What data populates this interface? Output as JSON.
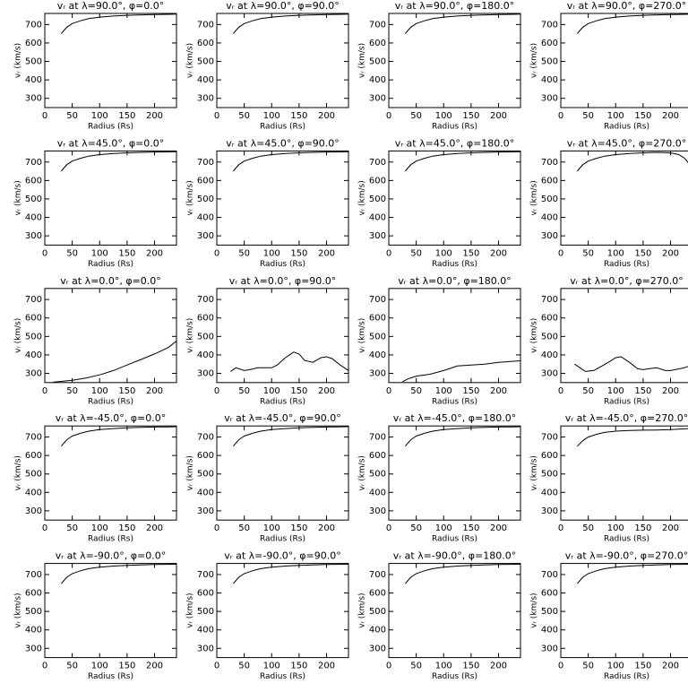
{
  "chart_data": [
    {
      "type": "line",
      "title": "vᵣ at λ=90.0°, φ=0.0°",
      "x_label": "Radius (Rs)",
      "y_label": "vᵣ (km/s)",
      "x": [
        30,
        40,
        50,
        65,
        80,
        100,
        125,
        150,
        175,
        200,
        225,
        240
      ],
      "values": [
        650,
        685,
        705,
        720,
        732,
        740,
        746,
        750,
        752,
        754,
        755,
        756
      ],
      "color": "#000000",
      "xlim": [
        0,
        240
      ],
      "ylim": [
        250,
        760
      ],
      "xticks": [
        0,
        50,
        100,
        150,
        200
      ],
      "yticks": [
        300,
        400,
        500,
        600,
        700
      ]
    },
    {
      "type": "line",
      "title": "vᵣ at λ=90.0°, φ=90.0°",
      "x_label": "Radius (Rs)",
      "y_label": "vᵣ (km/s)",
      "x": [
        30,
        40,
        50,
        65,
        80,
        100,
        125,
        150,
        175,
        200,
        225,
        240
      ],
      "values": [
        650,
        685,
        705,
        720,
        732,
        740,
        746,
        750,
        752,
        754,
        755,
        756
      ],
      "color": "#000000",
      "xlim": [
        0,
        240
      ],
      "ylim": [
        250,
        760
      ],
      "xticks": [
        0,
        50,
        100,
        150,
        200
      ],
      "yticks": [
        300,
        400,
        500,
        600,
        700
      ]
    },
    {
      "type": "line",
      "title": "vᵣ at λ=90.0°, φ=180.0°",
      "x_label": "Radius (Rs)",
      "y_label": "vᵣ (km/s)",
      "x": [
        30,
        40,
        50,
        65,
        80,
        100,
        125,
        150,
        175,
        200,
        225,
        240
      ],
      "values": [
        650,
        685,
        705,
        720,
        732,
        740,
        746,
        750,
        752,
        754,
        755,
        756
      ],
      "color": "#000000",
      "xlim": [
        0,
        240
      ],
      "ylim": [
        250,
        760
      ],
      "xticks": [
        0,
        50,
        100,
        150,
        200
      ],
      "yticks": [
        300,
        400,
        500,
        600,
        700
      ]
    },
    {
      "type": "line",
      "title": "vᵣ at λ=90.0°, φ=270.0°",
      "x_label": "Radius (Rs)",
      "y_label": "vᵣ (km/s)",
      "x": [
        30,
        40,
        50,
        65,
        80,
        100,
        125,
        150,
        175,
        200,
        225,
        240
      ],
      "values": [
        650,
        685,
        705,
        720,
        732,
        740,
        746,
        750,
        752,
        754,
        755,
        756
      ],
      "color": "#000000",
      "xlim": [
        0,
        240
      ],
      "ylim": [
        250,
        760
      ],
      "xticks": [
        0,
        50,
        100,
        150,
        200
      ],
      "yticks": [
        300,
        400,
        500,
        600,
        700
      ]
    },
    {
      "type": "line",
      "title": "vᵣ at λ=45.0°, φ=0.0°",
      "x_label": "Radius (Rs)",
      "y_label": "vᵣ (km/s)",
      "x": [
        30,
        40,
        50,
        65,
        80,
        100,
        125,
        150,
        175,
        200,
        225,
        240
      ],
      "values": [
        650,
        685,
        705,
        720,
        732,
        740,
        746,
        750,
        752,
        754,
        755,
        756
      ],
      "color": "#000000",
      "xlim": [
        0,
        240
      ],
      "ylim": [
        250,
        760
      ],
      "xticks": [
        0,
        50,
        100,
        150,
        200
      ],
      "yticks": [
        300,
        400,
        500,
        600,
        700
      ]
    },
    {
      "type": "line",
      "title": "vᵣ at λ=45.0°, φ=90.0°",
      "x_label": "Radius (Rs)",
      "y_label": "vᵣ (km/s)",
      "x": [
        30,
        40,
        50,
        65,
        80,
        100,
        125,
        150,
        175,
        200,
        225,
        240
      ],
      "values": [
        650,
        685,
        705,
        720,
        732,
        740,
        746,
        750,
        752,
        754,
        755,
        756
      ],
      "color": "#000000",
      "xlim": [
        0,
        240
      ],
      "ylim": [
        250,
        760
      ],
      "xticks": [
        0,
        50,
        100,
        150,
        200
      ],
      "yticks": [
        300,
        400,
        500,
        600,
        700
      ]
    },
    {
      "type": "line",
      "title": "vᵣ at λ=45.0°, φ=180.0°",
      "x_label": "Radius (Rs)",
      "y_label": "vᵣ (km/s)",
      "x": [
        30,
        40,
        50,
        65,
        80,
        100,
        125,
        150,
        175,
        200,
        225,
        240
      ],
      "values": [
        650,
        685,
        705,
        720,
        732,
        740,
        746,
        750,
        752,
        754,
        755,
        756
      ],
      "color": "#000000",
      "xlim": [
        0,
        240
      ],
      "ylim": [
        250,
        760
      ],
      "xticks": [
        0,
        50,
        100,
        150,
        200
      ],
      "yticks": [
        300,
        400,
        500,
        600,
        700
      ]
    },
    {
      "type": "line",
      "title": "vᵣ at λ=45.0°, φ=270.0°",
      "x_label": "Radius (Rs)",
      "y_label": "vᵣ (km/s)",
      "x": [
        30,
        40,
        50,
        65,
        80,
        100,
        125,
        150,
        175,
        200,
        215,
        225,
        240
      ],
      "values": [
        650,
        685,
        705,
        720,
        732,
        740,
        746,
        750,
        752,
        750,
        740,
        722,
        670
      ],
      "color": "#000000",
      "xlim": [
        0,
        240
      ],
      "ylim": [
        250,
        760
      ],
      "xticks": [
        0,
        50,
        100,
        150,
        200
      ],
      "yticks": [
        300,
        400,
        500,
        600,
        700
      ]
    },
    {
      "type": "line",
      "title": "vᵣ at λ=0.0°, φ=0.0°",
      "x_label": "Radius (Rs)",
      "y_label": "vᵣ (km/s)",
      "x": [
        15,
        50,
        75,
        100,
        125,
        150,
        175,
        200,
        225,
        240
      ],
      "values": [
        252,
        262,
        275,
        292,
        315,
        345,
        375,
        405,
        440,
        475
      ],
      "color": "#000000",
      "xlim": [
        0,
        240
      ],
      "ylim": [
        250,
        760
      ],
      "xticks": [
        0,
        50,
        100,
        150,
        200
      ],
      "yticks": [
        300,
        400,
        500,
        600,
        700
      ]
    },
    {
      "type": "line",
      "title": "vᵣ at λ=0.0°, φ=90.0°",
      "x_label": "Radius (Rs)",
      "y_label": "vᵣ (km/s)",
      "x": [
        25,
        35,
        50,
        60,
        75,
        90,
        100,
        110,
        125,
        140,
        150,
        160,
        175,
        190,
        200,
        210,
        225,
        240
      ],
      "values": [
        310,
        330,
        315,
        320,
        330,
        330,
        330,
        345,
        385,
        415,
        405,
        370,
        360,
        385,
        390,
        380,
        345,
        315
      ],
      "color": "#000000",
      "xlim": [
        0,
        240
      ],
      "ylim": [
        250,
        760
      ],
      "xticks": [
        0,
        50,
        100,
        150,
        200
      ],
      "yticks": [
        300,
        400,
        500,
        600,
        700
      ]
    },
    {
      "type": "line",
      "title": "vᵣ at λ=0.0°, φ=180.0°",
      "x_label": "Radius (Rs)",
      "y_label": "vᵣ (km/s)",
      "x": [
        25,
        35,
        50,
        75,
        100,
        125,
        150,
        175,
        200,
        225,
        240
      ],
      "values": [
        255,
        270,
        285,
        295,
        315,
        340,
        345,
        350,
        360,
        365,
        368
      ],
      "color": "#000000",
      "xlim": [
        0,
        240
      ],
      "ylim": [
        250,
        760
      ],
      "xticks": [
        0,
        50,
        100,
        150,
        200
      ],
      "yticks": [
        300,
        400,
        500,
        600,
        700
      ]
    },
    {
      "type": "line",
      "title": "vᵣ at λ=0.0°, φ=270.0°",
      "x_label": "Radius (Rs)",
      "y_label": "vᵣ (km/s)",
      "x": [
        25,
        35,
        45,
        60,
        75,
        90,
        100,
        110,
        125,
        140,
        150,
        160,
        175,
        190,
        200,
        225,
        240
      ],
      "values": [
        350,
        330,
        310,
        315,
        340,
        365,
        385,
        390,
        360,
        325,
        320,
        325,
        330,
        315,
        315,
        330,
        345
      ],
      "color": "#000000",
      "xlim": [
        0,
        240
      ],
      "ylim": [
        250,
        760
      ],
      "xticks": [
        0,
        50,
        100,
        150,
        200
      ],
      "yticks": [
        300,
        400,
        500,
        600,
        700
      ]
    },
    {
      "type": "line",
      "title": "vᵣ at λ=-45.0°, φ=0.0°",
      "x_label": "Radius (Rs)",
      "y_label": "vᵣ (km/s)",
      "x": [
        30,
        40,
        50,
        65,
        80,
        100,
        125,
        150,
        175,
        200,
        225,
        240
      ],
      "values": [
        650,
        685,
        705,
        720,
        732,
        740,
        746,
        750,
        752,
        754,
        755,
        756
      ],
      "color": "#000000",
      "xlim": [
        0,
        240
      ],
      "ylim": [
        250,
        760
      ],
      "xticks": [
        0,
        50,
        100,
        150,
        200
      ],
      "yticks": [
        300,
        400,
        500,
        600,
        700
      ]
    },
    {
      "type": "line",
      "title": "vᵣ at λ=-45.0°, φ=90.0°",
      "x_label": "Radius (Rs)",
      "y_label": "vᵣ (km/s)",
      "x": [
        30,
        40,
        50,
        65,
        80,
        100,
        125,
        150,
        175,
        200,
        225,
        240
      ],
      "values": [
        650,
        685,
        705,
        720,
        732,
        740,
        746,
        750,
        752,
        754,
        755,
        756
      ],
      "color": "#000000",
      "xlim": [
        0,
        240
      ],
      "ylim": [
        250,
        760
      ],
      "xticks": [
        0,
        50,
        100,
        150,
        200
      ],
      "yticks": [
        300,
        400,
        500,
        600,
        700
      ]
    },
    {
      "type": "line",
      "title": "vᵣ at λ=-45.0°, φ=180.0°",
      "x_label": "Radius (Rs)",
      "y_label": "vᵣ (km/s)",
      "x": [
        30,
        40,
        50,
        65,
        80,
        100,
        125,
        150,
        175,
        200,
        225,
        240
      ],
      "values": [
        650,
        685,
        705,
        720,
        732,
        740,
        746,
        750,
        752,
        754,
        755,
        756
      ],
      "color": "#000000",
      "xlim": [
        0,
        240
      ],
      "ylim": [
        250,
        760
      ],
      "xticks": [
        0,
        50,
        100,
        150,
        200
      ],
      "yticks": [
        300,
        400,
        500,
        600,
        700
      ]
    },
    {
      "type": "line",
      "title": "vᵣ at λ=-45.0°, φ=270.0°",
      "x_label": "Radius (Rs)",
      "y_label": "vᵣ (km/s)",
      "x": [
        30,
        40,
        50,
        65,
        80,
        100,
        125,
        150,
        175,
        200,
        225,
        240
      ],
      "values": [
        650,
        680,
        700,
        715,
        725,
        732,
        735,
        737,
        738,
        740,
        744,
        748
      ],
      "color": "#000000",
      "xlim": [
        0,
        240
      ],
      "ylim": [
        250,
        760
      ],
      "xticks": [
        0,
        50,
        100,
        150,
        200
      ],
      "yticks": [
        300,
        400,
        500,
        600,
        700
      ]
    },
    {
      "type": "line",
      "title": "vᵣ at λ=-90.0°, φ=0.0°",
      "x_label": "Radius (Rs)",
      "y_label": "vᵣ (km/s)",
      "x": [
        30,
        40,
        50,
        65,
        80,
        100,
        125,
        150,
        175,
        200,
        225,
        240
      ],
      "values": [
        650,
        685,
        705,
        720,
        732,
        740,
        746,
        750,
        752,
        754,
        755,
        756
      ],
      "color": "#000000",
      "xlim": [
        0,
        240
      ],
      "ylim": [
        250,
        760
      ],
      "xticks": [
        0,
        50,
        100,
        150,
        200
      ],
      "yticks": [
        300,
        400,
        500,
        600,
        700
      ]
    },
    {
      "type": "line",
      "title": "vᵣ at λ=-90.0°, φ=90.0°",
      "x_label": "Radius (Rs)",
      "y_label": "vᵣ (km/s)",
      "x": [
        30,
        40,
        50,
        65,
        80,
        100,
        125,
        150,
        175,
        200,
        225,
        240
      ],
      "values": [
        650,
        685,
        705,
        720,
        732,
        740,
        746,
        750,
        752,
        754,
        755,
        756
      ],
      "color": "#000000",
      "xlim": [
        0,
        240
      ],
      "ylim": [
        250,
        760
      ],
      "xticks": [
        0,
        50,
        100,
        150,
        200
      ],
      "yticks": [
        300,
        400,
        500,
        600,
        700
      ]
    },
    {
      "type": "line",
      "title": "vᵣ at λ=-90.0°, φ=180.0°",
      "x_label": "Radius (Rs)",
      "y_label": "vᵣ (km/s)",
      "x": [
        30,
        40,
        50,
        65,
        80,
        100,
        125,
        150,
        175,
        200,
        225,
        240
      ],
      "values": [
        650,
        685,
        705,
        720,
        732,
        740,
        746,
        750,
        752,
        754,
        755,
        756
      ],
      "color": "#000000",
      "xlim": [
        0,
        240
      ],
      "ylim": [
        250,
        760
      ],
      "xticks": [
        0,
        50,
        100,
        150,
        200
      ],
      "yticks": [
        300,
        400,
        500,
        600,
        700
      ]
    },
    {
      "type": "line",
      "title": "vᵣ at λ=-90.0°, φ=270.0°",
      "x_label": "Radius (Rs)",
      "y_label": "vᵣ (km/s)",
      "x": [
        30,
        40,
        50,
        65,
        80,
        100,
        125,
        150,
        175,
        200,
        225,
        240
      ],
      "values": [
        650,
        685,
        705,
        720,
        732,
        740,
        746,
        750,
        752,
        754,
        755,
        756
      ],
      "color": "#000000",
      "xlim": [
        0,
        240
      ],
      "ylim": [
        250,
        760
      ],
      "xticks": [
        0,
        50,
        100,
        150,
        200
      ],
      "yticks": [
        300,
        400,
        500,
        600,
        700
      ]
    }
  ]
}
